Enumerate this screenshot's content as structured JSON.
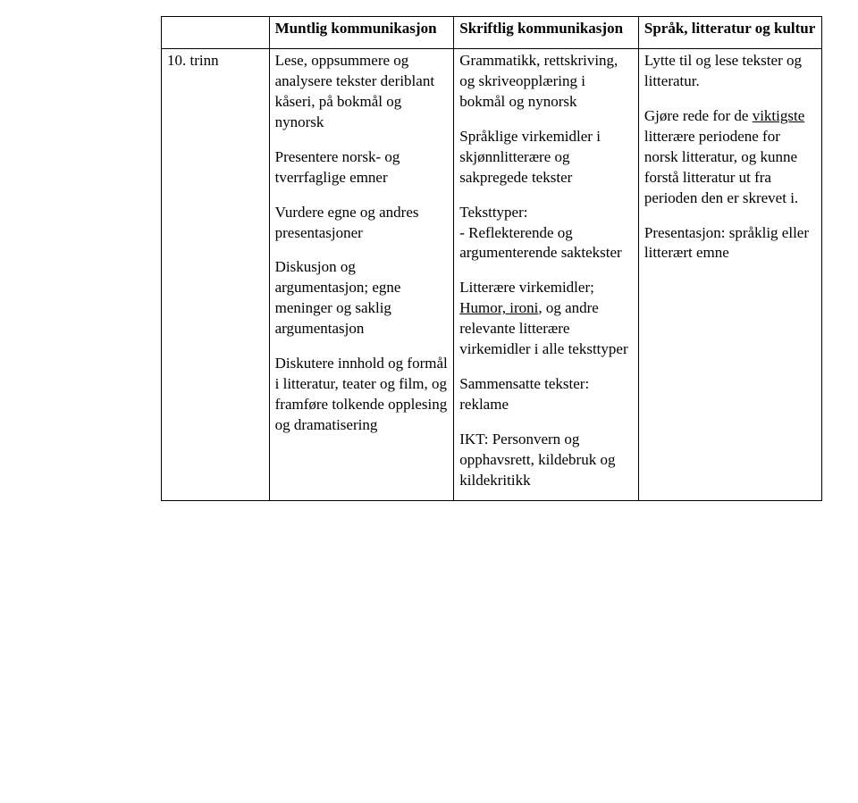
{
  "table": {
    "header": {
      "col0": "",
      "col1": "Muntlig kommunikasjon",
      "col2": "Skriftlig kommunikasjon",
      "col3": "Språk, litteratur og kultur"
    },
    "row": {
      "col0": "10. trinn",
      "col1": {
        "p1": "Lese, oppsummere og analysere tekster deriblant kåseri, på bokmål og nynorsk",
        "p2": "Presentere norsk- og tverrfaglige emner",
        "p3": "Vurdere egne og andres presentasjoner",
        "p4": "Diskusjon og argumentasjon; egne meninger og saklig argumentasjon",
        "p5": "Diskutere innhold og formål i litteratur, teater og film, og framføre tolkende opplesing og dramatisering"
      },
      "col2": {
        "p1": "Grammatikk, rettskriving, og skriveopplæring i bokmål og nynorsk",
        "p2": "Språklige virkemidler i skjønnlitterære og sakpregede tekster",
        "p3a": "Teksttyper:",
        "p3b": "- Reflekterende og argumenterende saktekster",
        "p4a": "Litterære virkemidler; ",
        "p4b": "Humor, ironi",
        "p4c": ", og andre relevante litterære virkemidler i alle teksttyper",
        "p5": "Sammensatte tekster: reklame",
        "p6": "IKT: Personvern og opphavsrett, kildebruk og kildekritikk"
      },
      "col3": {
        "p1": "Lytte til og lese tekster og litteratur.",
        "p2a": "Gjøre rede for de ",
        "p2b": "viktigste",
        "p2c": " litterære periodene for norsk litteratur, og kunne forstå litteratur ut fra perioden den er skrevet i.",
        "p3": "Presentasjon: språklig eller litterært emne"
      }
    }
  }
}
